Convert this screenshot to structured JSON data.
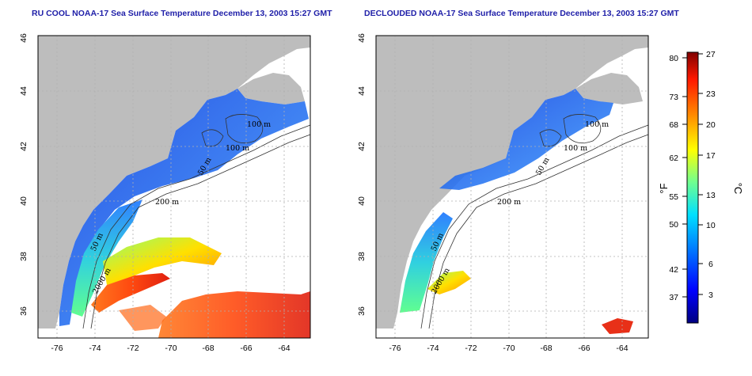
{
  "titles": {
    "left": "RU COOL NOAA-17 Sea Surface Temperature December 13, 2003 15:27 GMT",
    "right": "DECLOUDED NOAA-17 Sea Surface Temperature December 13, 2003 15:27 GMT"
  },
  "axes": {
    "lon_ticks": [
      "-76",
      "-74",
      "-72",
      "-70",
      "-68",
      "-66",
      "-64"
    ],
    "lat_ticks": [
      "36",
      "38",
      "40",
      "42",
      "44",
      "46"
    ],
    "lon_range": [
      -77.2,
      -62.8
    ],
    "lat_range": [
      35.0,
      46.0
    ]
  },
  "contour_labels": {
    "left": [
      "100 m",
      "100 m",
      "50 m",
      "200 m",
      "50 m",
      "2000 m"
    ],
    "right": [
      "100 m",
      "100 m",
      "50 m",
      "200 m",
      "50 m",
      "2000 m"
    ]
  },
  "colorbar": {
    "fahrenheit_ticks": [
      "80",
      "73",
      "68",
      "62",
      "55",
      "50",
      "42",
      "37"
    ],
    "celsius_ticks": [
      "27",
      "23",
      "20",
      "17",
      "13",
      "10",
      "6",
      "3"
    ],
    "unit_f": "°F",
    "unit_c": "°C"
  },
  "colors": {
    "land": "#bdbdbd",
    "title": "#1e1ea8",
    "grid": "#b0b0b0"
  }
}
